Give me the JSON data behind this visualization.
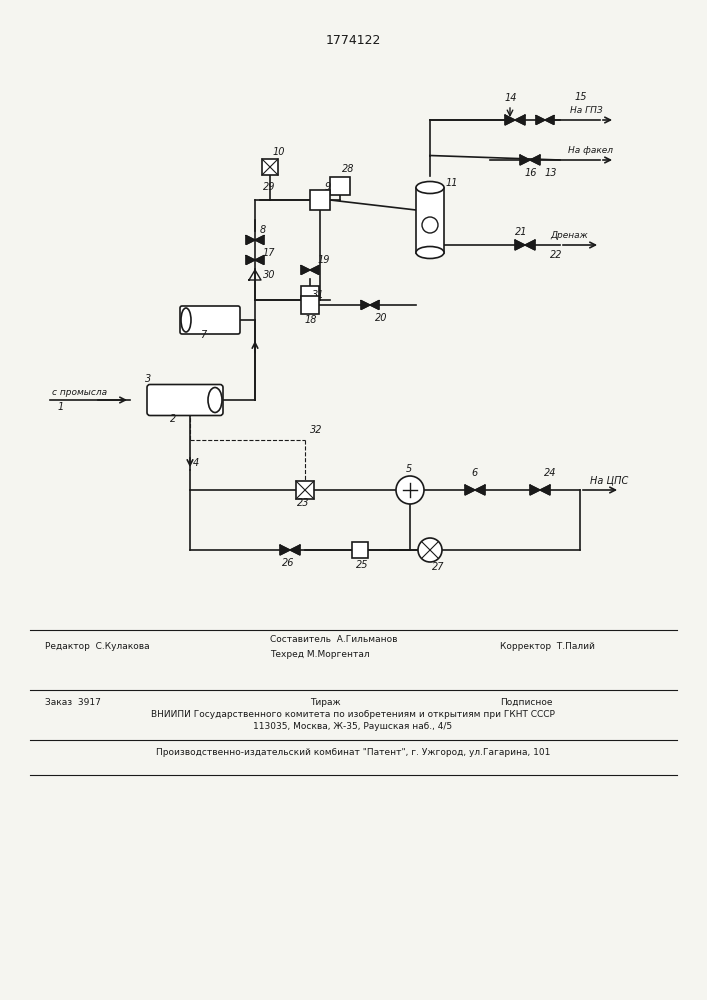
{
  "title": "1774122",
  "bg_color": "#f5f5f0",
  "line_color": "#1a1a1a",
  "footer_lines": [
    [
      "Редактор  С.Кулакова",
      "Составитель  А.Гильманов",
      "Корректор  Т.Палий"
    ],
    [
      "",
      "Техред М.Моргентал",
      ""
    ],
    [
      "Заказ  3917",
      "Тираж",
      "Подписное"
    ],
    [
      "ВНИИПИ Государственного комитета по изобретениям и открытиям при ГКНТ СССР"
    ],
    [
      "113035, Москва, Ж-35, Раушская наб., 4/5"
    ],
    [
      "Производственно-издательский комбинат \"Патент\", г. Ужгород, ул.Гагарина, 101"
    ]
  ]
}
